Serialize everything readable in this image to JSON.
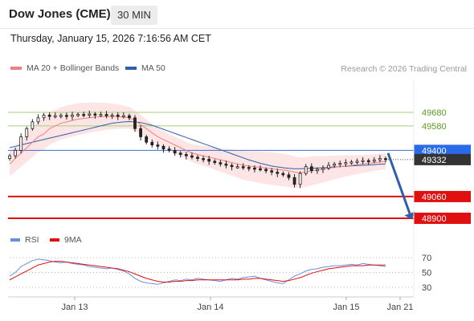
{
  "header": {
    "title": "Dow Jones (CME)",
    "timeframe": "30 MIN"
  },
  "datetime": "Thursday, January 15, 2026 7:16:56 AM CET",
  "legend": {
    "ma20_label": "MA 20 + Bollinger Bands",
    "ma50_label": "MA 50",
    "credit": "Research © 2026 Trading Central"
  },
  "rsi_legend": {
    "rsi_label": "RSI",
    "ma_label": "9MA"
  },
  "colors": {
    "ma20": "#f08080",
    "ma50": "#2e5fa8",
    "bollinger_fill": "#fde0e0",
    "resistance_line": "#a5cf7a",
    "resistance_text": "#58a020",
    "pivot_line": "#3a6fd8",
    "pivot_label_bg": "#2a6ae8",
    "support_line": "#e01010",
    "support_label_bg": "#e01010",
    "last_price_bg": "#333333",
    "arrow": "#2e5fa8",
    "rsi": "#6a8fe0",
    "rsi_ma": "#e01010",
    "candle": "#222222"
  },
  "chart_data": {
    "type": "candlestick",
    "symbol": "Dow Jones (CME)",
    "timeframe": "30 MIN",
    "y_range": [
      48870,
      49720
    ],
    "x_tick_labels": [
      "Jan 13",
      "Jan 14",
      "Jan 15",
      "Jan 21"
    ],
    "levels": [
      {
        "value": 49680,
        "kind": "resistance",
        "label": "49680"
      },
      {
        "value": 49580,
        "kind": "resistance",
        "label": "49580"
      },
      {
        "value": 49400,
        "kind": "pivot",
        "label": "49400"
      },
      {
        "value": 49060,
        "kind": "support",
        "label": "49060"
      },
      {
        "value": 48900,
        "kind": "support",
        "label": "48900"
      }
    ],
    "last_price": {
      "value": 49332,
      "label": "49332"
    },
    "arrow": {
      "from": 49380,
      "to": 48900
    },
    "closes": [
      49360,
      49400,
      49500,
      49560,
      49610,
      49640,
      49660,
      49650,
      49655,
      49658,
      49650,
      49660,
      49665,
      49662,
      49668,
      49660,
      49665,
      49655,
      49660,
      49650,
      49655,
      49640,
      49560,
      49500,
      49460,
      49440,
      49430,
      49410,
      49400,
      49380,
      49370,
      49360,
      49350,
      49340,
      49335,
      49320,
      49310,
      49300,
      49290,
      49280,
      49280,
      49275,
      49270,
      49265,
      49260,
      49250,
      49240,
      49230,
      49220,
      49200,
      49150,
      49230,
      49280,
      49250,
      49260,
      49270,
      49290,
      49300,
      49305,
      49310,
      49315,
      49320,
      49325,
      49320,
      49330,
      49340,
      49332
    ],
    "ma20": [
      49300,
      49340,
      49380,
      49420,
      49460,
      49500,
      49520,
      49560,
      49580,
      49600,
      49610,
      49620,
      49630,
      49635,
      49640,
      49645,
      49648,
      49650,
      49650,
      49648,
      49645,
      49640,
      49620,
      49590,
      49560,
      49530,
      49500,
      49480,
      49460,
      49440,
      49420,
      49400,
      49380,
      49370,
      49360,
      49350,
      49340,
      49330,
      49320,
      49310,
      49300,
      49290,
      49285,
      49280,
      49275,
      49270,
      49265,
      49260,
      49255,
      49250,
      49240,
      49235,
      49240,
      49250,
      49255,
      49260,
      49268,
      49275,
      49280,
      49285,
      49290,
      49295,
      49300,
      49305,
      49310,
      49315,
      49318
    ],
    "ma50": [
      49420,
      49430,
      49440,
      49450,
      49460,
      49470,
      49480,
      49490,
      49500,
      49510,
      49520,
      49530,
      49540,
      49550,
      49560,
      49570,
      49580,
      49590,
      49600,
      49605,
      49610,
      49612,
      49610,
      49605,
      49595,
      49585,
      49570,
      49555,
      49540,
      49525,
      49510,
      49495,
      49480,
      49465,
      49450,
      49435,
      49420,
      49405,
      49390,
      49375,
      49360,
      49345,
      49330,
      49318,
      49305,
      49295,
      49285,
      49278,
      49272,
      49268,
      49265,
      49265,
      49266,
      49268,
      49270,
      49272,
      49275,
      49278,
      49280,
      49283,
      49286,
      49288,
      49290,
      49292,
      49295,
      49298,
      49300
    ],
    "rsi": {
      "levels": [
        70,
        50,
        30
      ],
      "rsi_values": [
        45,
        50,
        58,
        62,
        66,
        68,
        67,
        66,
        64,
        63,
        64,
        62,
        61,
        60,
        58,
        57,
        56,
        55,
        56,
        54,
        52,
        48,
        42,
        38,
        36,
        35,
        34,
        36,
        38,
        40,
        39,
        41,
        40,
        42,
        41,
        40,
        39,
        38,
        40,
        42,
        41,
        43,
        44,
        45,
        42,
        40,
        38,
        36,
        35,
        40,
        45,
        48,
        52,
        54,
        55,
        57,
        58,
        59,
        59,
        60,
        61,
        60,
        62,
        61,
        60,
        59,
        58
      ],
      "ma_values": [
        40,
        44,
        48,
        52,
        56,
        60,
        62,
        64,
        65,
        65,
        64,
        63,
        62,
        61,
        60,
        59,
        58,
        57,
        56,
        55,
        53,
        51,
        48,
        45,
        42,
        40,
        38,
        37,
        37,
        38,
        38,
        39,
        39,
        40,
        40,
        40,
        40,
        40,
        40,
        40,
        40,
        41,
        41,
        42,
        42,
        41,
        40,
        39,
        38,
        39,
        41,
        43,
        46,
        49,
        51,
        53,
        55,
        56,
        57,
        58,
        59,
        59,
        59,
        60,
        60,
        60,
        60
      ]
    }
  }
}
